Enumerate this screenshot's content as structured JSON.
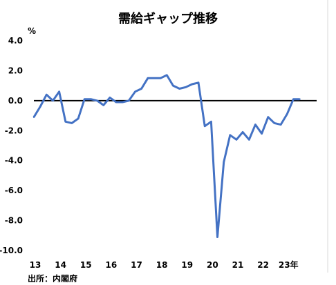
{
  "chart_data": {
    "type": "line",
    "title": "需給ギャップ推移",
    "ylabel": "%",
    "ylim": [
      -10.0,
      4.0
    ],
    "yticks": [
      "4.0",
      "2.0",
      "0.0",
      "-2.0",
      "-4.0",
      "-6.0",
      "-8.0",
      "-10.0"
    ],
    "xlim": [
      2013.0,
      2024.25
    ],
    "xticks": [
      "13",
      "14",
      "15",
      "16",
      "17",
      "18",
      "19",
      "20",
      "21",
      "22",
      "23年"
    ],
    "grid": false,
    "legend": "none",
    "line_color": "#4472c4",
    "zero_line_color": "#000000",
    "source": "出所：内閣府",
    "series": [
      {
        "x": [
          2013.0,
          2013.25,
          2013.5,
          2013.75,
          2014.0,
          2014.25,
          2014.5,
          2014.75,
          2015.0,
          2015.25,
          2015.5,
          2015.75,
          2016.0,
          2016.25,
          2016.5,
          2016.75,
          2017.0,
          2017.25,
          2017.5,
          2017.75,
          2018.0,
          2018.25,
          2018.5,
          2018.75,
          2019.0,
          2019.25,
          2019.5,
          2019.75,
          2020.0,
          2020.25,
          2020.5,
          2020.75,
          2021.0,
          2021.25,
          2021.5,
          2021.75,
          2022.0,
          2022.25,
          2022.5,
          2022.75,
          2023.0,
          2023.25,
          2023.5
        ],
        "values": [
          -1.1,
          -0.4,
          0.4,
          0.0,
          0.6,
          -1.4,
          -1.5,
          -1.2,
          0.1,
          0.1,
          0.0,
          -0.3,
          0.2,
          -0.1,
          -0.1,
          0.0,
          0.6,
          0.8,
          1.5,
          1.5,
          1.5,
          1.7,
          1.0,
          0.8,
          0.9,
          1.1,
          1.2,
          -1.7,
          -1.4,
          -9.1,
          -4.1,
          -2.3,
          -2.6,
          -2.1,
          -2.6,
          -1.6,
          -2.2,
          -1.1,
          -1.5,
          -1.6,
          -0.9,
          0.1,
          0.1
        ]
      }
    ]
  }
}
